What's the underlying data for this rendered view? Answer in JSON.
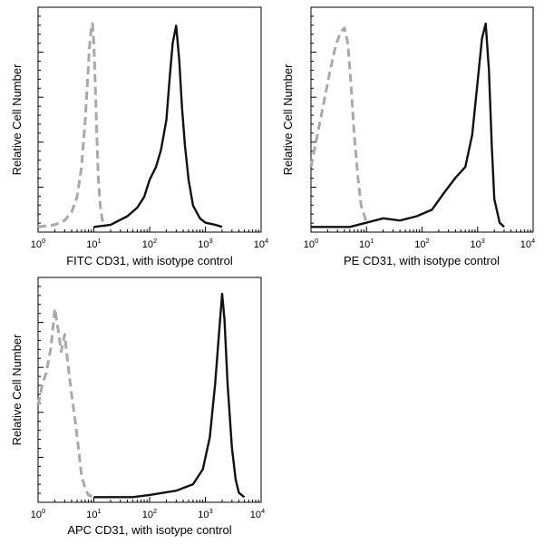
{
  "figure": {
    "background": "#ffffff",
    "isotype_color": "#a9a9a9",
    "sample_color": "#111111"
  },
  "chart_data": [
    {
      "type": "line",
      "id": "fitc",
      "title": "",
      "xlabel": "FITC CD31, with isotype control",
      "ylabel": "Relative Cell Number",
      "x_scale": "log",
      "xlim": [
        1,
        10000
      ],
      "ylim": [
        0,
        1
      ],
      "grid": false,
      "x_tick_labels": [
        {
          "base": "10",
          "exp": "0"
        },
        {
          "base": "10",
          "exp": "1"
        },
        {
          "base": "10",
          "exp": "2"
        },
        {
          "base": "10",
          "exp": "3"
        },
        {
          "base": "10",
          "exp": "4"
        }
      ],
      "series": [
        {
          "role": "isotype control",
          "style": "dashed",
          "color": "#a9a9a9",
          "x": [
            1,
            2,
            3,
            4,
            5,
            6,
            7,
            7.7,
            8.3,
            9,
            9.5,
            10,
            10.6,
            11.3,
            12,
            13,
            14,
            15,
            16
          ],
          "y": [
            0.02,
            0.03,
            0.05,
            0.09,
            0.16,
            0.3,
            0.52,
            0.7,
            0.85,
            0.95,
            0.97,
            0.88,
            0.68,
            0.45,
            0.25,
            0.12,
            0.06,
            0.03,
            0.02
          ]
        },
        {
          "role": "sample",
          "style": "solid",
          "color": "#111111",
          "x": [
            10,
            20,
            40,
            60,
            80,
            100,
            130,
            160,
            200,
            230,
            260,
            300,
            340,
            380,
            430,
            500,
            600,
            800,
            1000,
            1500,
            2000
          ],
          "y": [
            0.02,
            0.03,
            0.07,
            0.11,
            0.16,
            0.24,
            0.3,
            0.38,
            0.52,
            0.72,
            0.88,
            0.96,
            0.8,
            0.58,
            0.4,
            0.24,
            0.12,
            0.06,
            0.04,
            0.03,
            0.02
          ]
        }
      ]
    },
    {
      "type": "line",
      "id": "pe",
      "title": "",
      "xlabel": "PE CD31, with isotype control",
      "ylabel": "Relative Cell Number",
      "x_scale": "log",
      "xlim": [
        1,
        10000
      ],
      "ylim": [
        0,
        1
      ],
      "grid": false,
      "x_tick_labels": [
        {
          "base": "10",
          "exp": "0"
        },
        {
          "base": "10",
          "exp": "1"
        },
        {
          "base": "10",
          "exp": "2"
        },
        {
          "base": "10",
          "exp": "3"
        },
        {
          "base": "10",
          "exp": "4"
        }
      ],
      "series": [
        {
          "role": "isotype control",
          "style": "dashed",
          "color": "#a9a9a9",
          "x": [
            1,
            1.3,
            1.7,
            2.2,
            2.8,
            3.4,
            4,
            4.6,
            5.2,
            6,
            7,
            8,
            10
          ],
          "y": [
            0.3,
            0.45,
            0.6,
            0.75,
            0.87,
            0.93,
            0.95,
            0.88,
            0.7,
            0.45,
            0.25,
            0.12,
            0.04
          ]
        },
        {
          "role": "sample",
          "style": "solid",
          "color": "#111111",
          "x": [
            1,
            5,
            10,
            20,
            40,
            80,
            150,
            250,
            400,
            600,
            800,
            1000,
            1200,
            1400,
            1600,
            1800,
            2000,
            2500,
            3000
          ],
          "y": [
            0.02,
            0.02,
            0.04,
            0.06,
            0.05,
            0.07,
            0.1,
            0.18,
            0.25,
            0.3,
            0.45,
            0.7,
            0.9,
            0.97,
            0.75,
            0.4,
            0.15,
            0.04,
            0.02
          ]
        }
      ]
    },
    {
      "type": "line",
      "id": "apc",
      "title": "",
      "xlabel": "APC CD31, with isotype control",
      "ylabel": "Relative Cell Number",
      "x_scale": "log",
      "xlim": [
        1,
        10000
      ],
      "ylim": [
        0,
        1
      ],
      "grid": false,
      "x_tick_labels": [
        {
          "base": "10",
          "exp": "0"
        },
        {
          "base": "10",
          "exp": "1"
        },
        {
          "base": "10",
          "exp": "2"
        },
        {
          "base": "10",
          "exp": "3"
        },
        {
          "base": "10",
          "exp": "4"
        }
      ],
      "series": [
        {
          "role": "isotype control",
          "style": "dashed",
          "color": "#a9a9a9",
          "x": [
            1,
            1.2,
            1.4,
            1.7,
            2,
            2.3,
            2.6,
            3,
            3.5,
            4,
            4.6,
            5.3,
            6,
            7,
            8,
            10
          ],
          "y": [
            0.45,
            0.55,
            0.6,
            0.72,
            0.9,
            0.8,
            0.7,
            0.78,
            0.62,
            0.5,
            0.38,
            0.25,
            0.12,
            0.06,
            0.03,
            0.02
          ]
        },
        {
          "role": "sample",
          "style": "solid",
          "color": "#111111",
          "x": [
            10,
            50,
            100,
            300,
            600,
            900,
            1200,
            1500,
            1800,
            2000,
            2200,
            2500,
            3000,
            3500,
            4000,
            5000
          ],
          "y": [
            0.02,
            0.02,
            0.03,
            0.05,
            0.08,
            0.15,
            0.3,
            0.55,
            0.82,
            0.97,
            0.85,
            0.55,
            0.25,
            0.1,
            0.04,
            0.02
          ]
        }
      ]
    }
  ]
}
